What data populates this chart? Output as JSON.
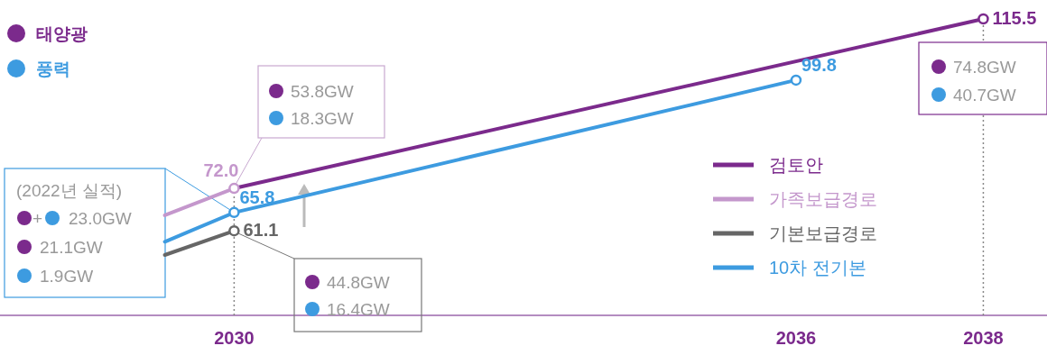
{
  "chart_data": {
    "type": "line",
    "xlim": [
      2027.5,
      2038.68
    ],
    "xticks": [
      2030,
      2036,
      2038
    ],
    "tick_labels": "x",
    "legend": "right",
    "marker": "circle",
    "line_style": "solid",
    "series": [
      {
        "name": "검토안",
        "color": "#7b2a8c",
        "x": [
          2030,
          2038
        ],
        "values": [
          72.0,
          115.5
        ],
        "value_labels": [
          null,
          "115.5"
        ]
      },
      {
        "name": "가족보급경로",
        "color": "#c497cc",
        "x": [
          2029.26,
          2030
        ],
        "values": [
          65.1,
          72.0
        ],
        "value_labels": [
          null,
          "72.0"
        ]
      },
      {
        "name": "기본보급경로",
        "color": "#666666",
        "x": [
          2029.26,
          2030
        ],
        "values": [
          54.9,
          61.1
        ],
        "value_labels": [
          null,
          "61.1"
        ]
      },
      {
        "name": "10차 전기본",
        "color": "#3d9be0",
        "x": [
          2029.26,
          2030,
          2036
        ],
        "values": [
          58.3,
          65.8,
          99.8
        ],
        "value_labels": [
          null,
          "65.8",
          "99.8"
        ]
      }
    ],
    "ref_lines": [
      {
        "axis": "x",
        "value": 2030,
        "color": "#888888",
        "line_style": "dotted"
      },
      {
        "axis": "x",
        "value": 2038,
        "color": "#888888",
        "line_style": "dotted"
      }
    ],
    "annotations": [
      "태양광",
      "풍력",
      "(2022년 실적)",
      "+",
      "23.0GW",
      "21.1GW",
      "1.9GW",
      "53.8GW",
      "18.3GW",
      "44.8GW",
      "16.4GW",
      "74.8GW",
      "40.7GW"
    ]
  }
}
